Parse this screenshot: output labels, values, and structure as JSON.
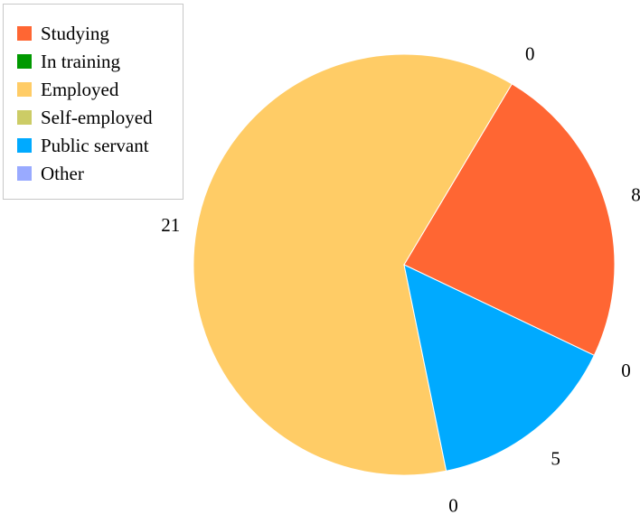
{
  "chart_data": {
    "type": "pie",
    "title": "",
    "legend_position": "top-left",
    "start_angle_deg": -25.5,
    "direction": "counterclockwise",
    "series": [
      {
        "name": "Studying",
        "value": 8,
        "color": "#FF6633"
      },
      {
        "name": "In training",
        "value": 0,
        "color": "#009900"
      },
      {
        "name": "Employed",
        "value": 21,
        "color": "#FFCC66"
      },
      {
        "name": "Self-employed",
        "value": 0,
        "color": "#CCCC66"
      },
      {
        "name": "Public servant",
        "value": 5,
        "color": "#00AAFF"
      },
      {
        "name": "Other",
        "value": 0,
        "color": "#99AAFF"
      }
    ],
    "data_labels": [
      {
        "series": "Studying",
        "text": "8"
      },
      {
        "series": "In training",
        "text": "0"
      },
      {
        "series": "Employed",
        "text": "21"
      },
      {
        "series": "Self-employed",
        "text": "0"
      },
      {
        "series": "Public servant",
        "text": "5"
      },
      {
        "series": "Other",
        "text": "0"
      }
    ]
  }
}
